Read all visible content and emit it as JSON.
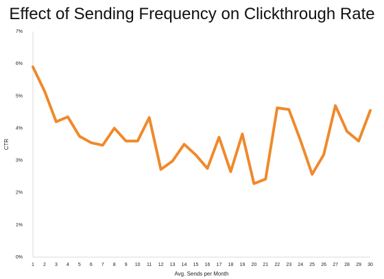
{
  "chart_data": {
    "type": "line",
    "title": "Effect of Sending Frequency on Clickthrough Rate",
    "xlabel": "Avg. Sends per Month",
    "ylabel": "CTR",
    "x": [
      1,
      2,
      3,
      4,
      5,
      6,
      7,
      8,
      9,
      10,
      11,
      12,
      13,
      14,
      15,
      16,
      17,
      18,
      19,
      20,
      21,
      22,
      23,
      24,
      25,
      26,
      27,
      28,
      29,
      30
    ],
    "series": [
      {
        "values": [
          5.9,
          5.15,
          4.2,
          4.35,
          3.75,
          3.55,
          3.47,
          4.0,
          3.6,
          3.6,
          4.33,
          2.72,
          2.98,
          3.5,
          3.17,
          2.75,
          3.72,
          2.65,
          3.82,
          2.28,
          2.42,
          4.63,
          4.58,
          3.62,
          2.57,
          3.18,
          4.7,
          3.9,
          3.6,
          4.55
        ],
        "color": "#f0892b"
      }
    ],
    "ylim": [
      0,
      7
    ],
    "y_ticks": [
      "0%",
      "1%",
      "2%",
      "3%",
      "4%",
      "5%",
      "6%",
      "7%"
    ],
    "x_ticks": [
      "1",
      "2",
      "3",
      "4",
      "5",
      "6",
      "7",
      "8",
      "9",
      "10",
      "11",
      "12",
      "13",
      "14",
      "15",
      "16",
      "17",
      "18",
      "19",
      "20",
      "21",
      "22",
      "23",
      "24",
      "25",
      "26",
      "27",
      "28",
      "29",
      "30"
    ],
    "grid": false,
    "legend": "none",
    "colors": {
      "line": "#f0892b",
      "axis": "#d9d9d9",
      "text": "#222222"
    }
  }
}
